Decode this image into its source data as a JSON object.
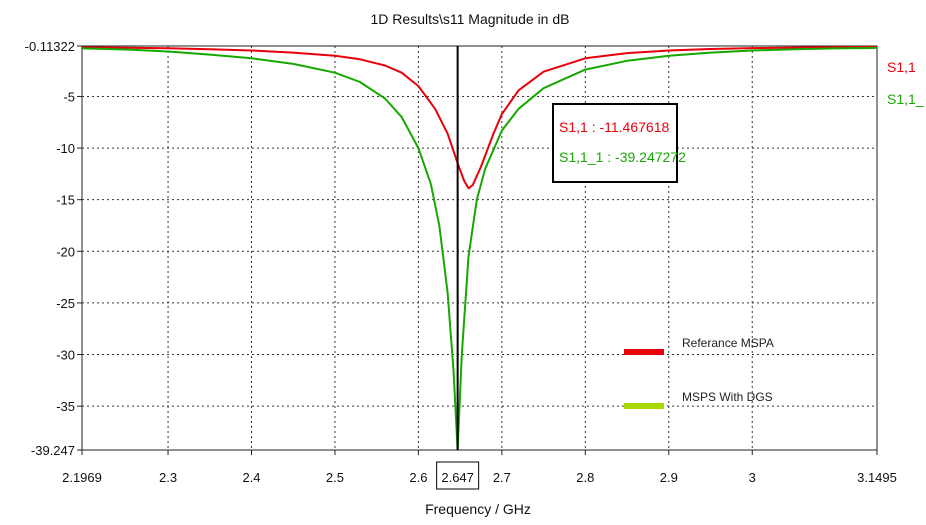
{
  "chart_data": {
    "type": "line",
    "title": "1D Results\\s11 Magnitude in dB",
    "xlabel": "Frequency / GHz",
    "ylabel": "",
    "xlim": [
      2.1969,
      3.1495
    ],
    "ylim": [
      -39.247,
      -0.11322
    ],
    "x_ticks": [
      2.1969,
      2.3,
      2.4,
      2.5,
      2.6,
      2.7,
      2.8,
      2.9,
      3,
      3.1495
    ],
    "x_tick_labels": [
      "2.1969",
      "2.3",
      "2.4",
      "2.5",
      "2.6",
      "2.7",
      "2.8",
      "2.9",
      "3",
      "3.1495"
    ],
    "y_ticks": [
      -0.11322,
      -5,
      -10,
      -15,
      -20,
      -25,
      -30,
      -35,
      -39.247
    ],
    "y_tick_labels": [
      "-0.11322",
      "-5",
      "-10",
      "-15",
      "-20",
      "-25",
      "-30",
      "-35",
      "-39.247"
    ],
    "grid": true,
    "marker": {
      "x": 2.647,
      "label": "2.647"
    },
    "readout": [
      {
        "text": "S1,1 : -11.467618",
        "color": "#e8000b"
      },
      {
        "text": "S1,1_1 : -39.247272",
        "color": "#16a800"
      }
    ],
    "series": [
      {
        "name": "S1,1",
        "legend_label": "Referance MSPA",
        "color": "#e8000b",
        "legend_color": "#e8000b",
        "x": [
          2.1969,
          2.25,
          2.3,
          2.35,
          2.4,
          2.45,
          2.5,
          2.53,
          2.56,
          2.58,
          2.6,
          2.62,
          2.635,
          2.647,
          2.655,
          2.66,
          2.665,
          2.675,
          2.69,
          2.7,
          2.72,
          2.75,
          2.8,
          2.85,
          2.9,
          2.95,
          3.0,
          3.05,
          3.1,
          3.1495
        ],
        "values": [
          -0.25,
          -0.28,
          -0.33,
          -0.42,
          -0.55,
          -0.75,
          -1.05,
          -1.4,
          -2.0,
          -2.7,
          -4.0,
          -6.2,
          -8.6,
          -11.47,
          -13.2,
          -13.9,
          -13.6,
          -11.8,
          -8.6,
          -6.7,
          -4.4,
          -2.6,
          -1.3,
          -0.8,
          -0.55,
          -0.4,
          -0.32,
          -0.27,
          -0.22,
          -0.2
        ]
      },
      {
        "name": "S1,1_",
        "legend_label": "MSPS With DGS",
        "color": "#16a800",
        "legend_color": "#a8d800",
        "x": [
          2.1969,
          2.25,
          2.3,
          2.35,
          2.4,
          2.45,
          2.5,
          2.53,
          2.56,
          2.58,
          2.6,
          2.615,
          2.625,
          2.635,
          2.642,
          2.647,
          2.652,
          2.66,
          2.67,
          2.68,
          2.7,
          2.72,
          2.75,
          2.8,
          2.85,
          2.9,
          2.95,
          3.0,
          3.05,
          3.1,
          3.1495
        ],
        "values": [
          -0.35,
          -0.45,
          -0.65,
          -0.95,
          -1.3,
          -1.85,
          -2.7,
          -3.6,
          -5.2,
          -7.0,
          -10.0,
          -13.5,
          -17.5,
          -24.0,
          -31.5,
          -39.25,
          -30.0,
          -20.5,
          -15.0,
          -12.0,
          -8.3,
          -6.2,
          -4.2,
          -2.4,
          -1.55,
          -1.05,
          -0.75,
          -0.55,
          -0.42,
          -0.35,
          -0.3
        ]
      }
    ]
  }
}
